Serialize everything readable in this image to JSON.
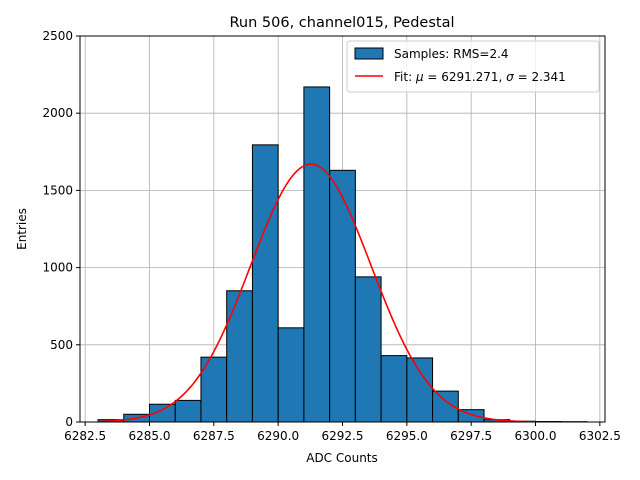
{
  "chart_data": {
    "type": "bar",
    "title": "Run 506, channel015, Pedestal",
    "xlabel": "ADC Counts",
    "ylabel": "Entries",
    "xlim": [
      6282.3,
      6302.7
    ],
    "ylim": [
      0,
      2500
    ],
    "xticks": [
      6282.5,
      6285.0,
      6287.5,
      6290.0,
      6292.5,
      6295.0,
      6297.5,
      6300.0,
      6302.5
    ],
    "xtick_labels": [
      "6282.5",
      "6285.0",
      "6287.5",
      "6290.0",
      "6292.5",
      "6295.0",
      "6297.5",
      "6300.0",
      "6302.5"
    ],
    "yticks": [
      0,
      500,
      1000,
      1500,
      2000,
      2500
    ],
    "ytick_labels": [
      "0",
      "500",
      "1000",
      "1500",
      "2000",
      "2500"
    ],
    "grid": true,
    "histogram": {
      "name": "Samples: RMS=2.4",
      "color": "#1f77b4",
      "edge_color": "#000000",
      "bin_edges": [
        6283,
        6284,
        6285,
        6286,
        6287,
        6288,
        6289,
        6290,
        6291,
        6292,
        6293,
        6294,
        6295,
        6296,
        6297,
        6298,
        6299,
        6300,
        6301,
        6302
      ],
      "counts": [
        15,
        50,
        115,
        140,
        420,
        850,
        1795,
        610,
        2170,
        1630,
        940,
        430,
        415,
        200,
        80,
        15,
        5,
        3,
        2
      ]
    },
    "fit": {
      "name": "Fit: μ = 6291.271, σ = 2.341",
      "color": "#ff0000",
      "mu": 6291.271,
      "sigma": 2.341,
      "amplitude": 1670,
      "x_range": [
        6283,
        6300
      ]
    },
    "legend": {
      "position": "top-right",
      "hist_label_text": "Samples: RMS=2.4",
      "fit_label_prefix": "Fit: ",
      "fit_label_mu": "μ",
      "fit_label_mid": " = 6291.271, ",
      "fit_label_sigma": "σ",
      "fit_label_suffix": " = 2.341"
    }
  }
}
